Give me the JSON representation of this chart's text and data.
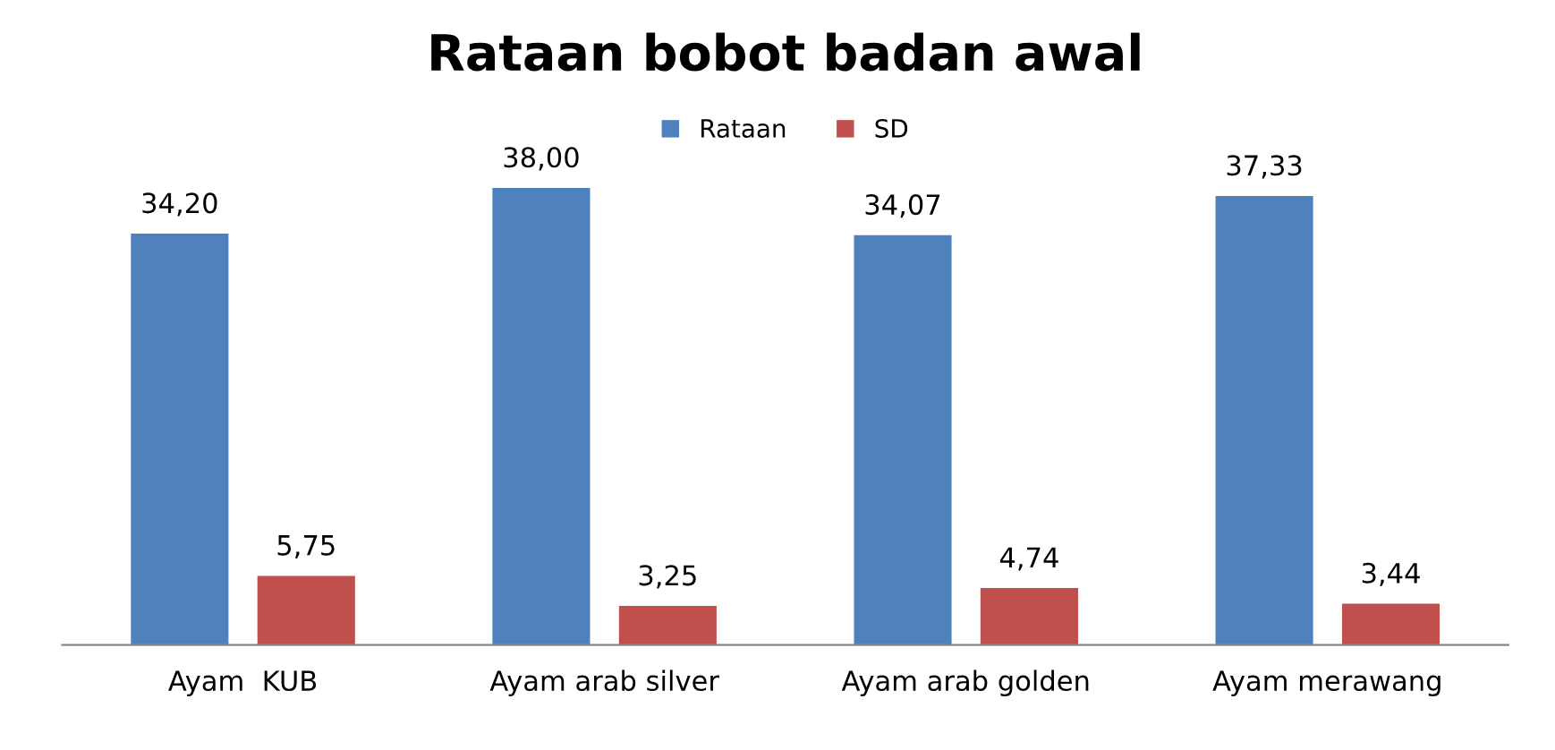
{
  "chart_data": {
    "type": "bar",
    "title": "Rataan bobot badan awal",
    "categories": [
      "Ayam  KUB",
      "Ayam arab silver",
      "Ayam arab golden",
      "Ayam merawang"
    ],
    "series": [
      {
        "name": "Rataan",
        "color": "#4f81bd",
        "values": [
          34.2,
          38.0,
          34.07,
          37.33
        ],
        "value_labels": [
          "34,20",
          "38,00",
          "34,07",
          "37,33"
        ]
      },
      {
        "name": "SD",
        "color": "#c0504d",
        "values": [
          5.75,
          3.25,
          4.74,
          3.44
        ],
        "value_labels": [
          "5,75",
          "3,25",
          "4,74",
          "3,44"
        ]
      }
    ],
    "legend": "top"
  }
}
